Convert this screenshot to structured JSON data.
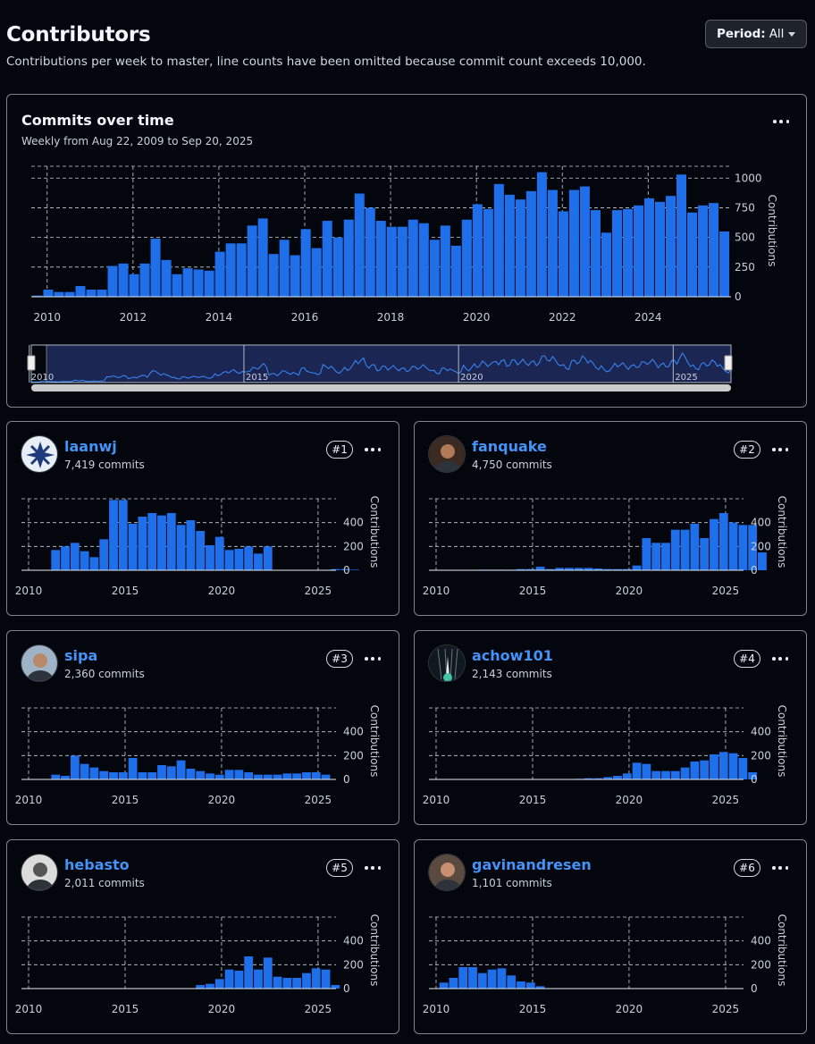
{
  "header": {
    "title": "Contributors",
    "subtitle": "Contributions per week to master, line counts have been omitted because commit count exceeds 10,000.",
    "period_label": "Period:",
    "period_value": "All"
  },
  "main_chart": {
    "title": "Commits over time",
    "subtitle": "Weekly from Aug 22, 2009 to Sep 20, 2025",
    "ylabel": "Contributions",
    "nav_labels": [
      "2010",
      "2015",
      "2020",
      "2025"
    ]
  },
  "contributors": [
    {
      "name": "laanwj",
      "commits": "7,419 commits",
      "rank": "#1",
      "avatar": "laanwj-avatar-icon"
    },
    {
      "name": "fanquake",
      "commits": "4,750 commits",
      "rank": "#2",
      "avatar": "fanquake-avatar-icon"
    },
    {
      "name": "sipa",
      "commits": "2,360 commits",
      "rank": "#3",
      "avatar": "sipa-avatar-icon"
    },
    {
      "name": "achow101",
      "commits": "2,143 commits",
      "rank": "#4",
      "avatar": "achow101-avatar-icon"
    },
    {
      "name": "hebasto",
      "commits": "2,011 commits",
      "rank": "#5",
      "avatar": "hebasto-avatar-icon"
    },
    {
      "name": "gavinandresen",
      "commits": "1,101 commits",
      "rank": "#6",
      "avatar": "gavinandresen-avatar-icon"
    }
  ],
  "colors": {
    "bar": "#1f6feb",
    "link": "#4493f8",
    "border": "#7d8590"
  },
  "chart_data": [
    {
      "type": "bar",
      "title": "Commits over time",
      "ylabel": "Contributions",
      "x_ticks": [
        "2010",
        "2012",
        "2014",
        "2016",
        "2018",
        "2020",
        "2022",
        "2024"
      ],
      "y_ticks": [
        "0",
        "250",
        "500",
        "750",
        "1000"
      ],
      "ylim": [
        0,
        1100
      ],
      "grid": true,
      "x_start": 2009.65,
      "values": [
        10,
        60,
        40,
        40,
        90,
        60,
        60,
        260,
        280,
        190,
        280,
        490,
        310,
        190,
        240,
        230,
        220,
        380,
        450,
        450,
        600,
        660,
        360,
        480,
        350,
        570,
        410,
        640,
        500,
        650,
        870,
        750,
        640,
        590,
        590,
        650,
        620,
        480,
        600,
        430,
        650,
        780,
        740,
        950,
        860,
        820,
        890,
        1050,
        900,
        720,
        900,
        930,
        730,
        540,
        730,
        740,
        770,
        830,
        800,
        850,
        1030,
        710,
        770,
        790,
        550
      ],
      "bar_width_years": 0.25
    },
    {
      "type": "bar",
      "name": "laanwj",
      "ylabel": "Contributions",
      "x_ticks": [
        "2010",
        "2015",
        "2020",
        "2025"
      ],
      "y_ticks": [
        "0",
        "200",
        "400"
      ],
      "ylim": [
        0,
        600
      ],
      "x_start": 2009.65,
      "bar_width_years": 0.5,
      "values": [
        0,
        0,
        0,
        170,
        200,
        230,
        160,
        110,
        260,
        590,
        590,
        390,
        450,
        480,
        460,
        480,
        380,
        420,
        330,
        210,
        280,
        170,
        180,
        200,
        140,
        200,
        0,
        0,
        0,
        0,
        0,
        0,
        10,
        10,
        5
      ]
    },
    {
      "type": "bar",
      "name": "fanquake",
      "ylabel": "Contributions",
      "x_ticks": [
        "2010",
        "2015",
        "2020",
        "2025"
      ],
      "y_ticks": [
        "0",
        "200",
        "400"
      ],
      "ylim": [
        0,
        600
      ],
      "x_start": 2009.65,
      "bar_width_years": 0.5,
      "values": [
        0,
        0,
        0,
        0,
        0,
        5,
        5,
        5,
        5,
        10,
        10,
        30,
        10,
        20,
        20,
        20,
        20,
        15,
        10,
        10,
        10,
        40,
        270,
        230,
        230,
        340,
        340,
        390,
        270,
        430,
        480,
        400,
        380,
        380,
        150
      ]
    },
    {
      "type": "bar",
      "name": "sipa",
      "ylabel": "Contributions",
      "x_ticks": [
        "2010",
        "2015",
        "2020",
        "2025"
      ],
      "y_ticks": [
        "0",
        "200",
        "400"
      ],
      "ylim": [
        0,
        600
      ],
      "x_start": 2009.65,
      "bar_width_years": 0.5,
      "values": [
        0,
        0,
        0,
        40,
        30,
        200,
        130,
        100,
        70,
        60,
        60,
        180,
        60,
        60,
        120,
        110,
        160,
        90,
        70,
        50,
        40,
        80,
        80,
        60,
        40,
        40,
        40,
        50,
        50,
        60,
        60,
        40,
        0,
        0,
        0
      ]
    },
    {
      "type": "bar",
      "name": "achow101",
      "ylabel": "Contributions",
      "x_ticks": [
        "2010",
        "2015",
        "2020",
        "2025"
      ],
      "y_ticks": [
        "0",
        "200",
        "400"
      ],
      "ylim": [
        0,
        600
      ],
      "x_start": 2009.65,
      "bar_width_years": 0.5,
      "values": [
        0,
        0,
        0,
        0,
        0,
        0,
        0,
        0,
        0,
        0,
        0,
        0,
        0,
        0,
        0,
        5,
        10,
        10,
        20,
        30,
        50,
        140,
        130,
        70,
        70,
        70,
        100,
        150,
        160,
        210,
        230,
        220,
        180,
        60,
        0
      ]
    },
    {
      "type": "bar",
      "name": "hebasto",
      "ylabel": "Contributions",
      "x_ticks": [
        "2010",
        "2015",
        "2020",
        "2025"
      ],
      "y_ticks": [
        "0",
        "200",
        "400"
      ],
      "ylim": [
        0,
        600
      ],
      "x_start": 2009.65,
      "bar_width_years": 0.5,
      "values": [
        0,
        0,
        0,
        0,
        0,
        0,
        0,
        0,
        0,
        0,
        0,
        0,
        0,
        0,
        0,
        0,
        0,
        0,
        30,
        40,
        80,
        160,
        150,
        270,
        160,
        260,
        100,
        90,
        90,
        130,
        170,
        160,
        30,
        0,
        0
      ]
    },
    {
      "type": "bar",
      "name": "gavinandresen",
      "ylabel": "Contributions",
      "x_ticks": [
        "2010",
        "2015",
        "2020",
        "2025"
      ],
      "y_ticks": [
        "0",
        "200",
        "400"
      ],
      "ylim": [
        0,
        600
      ],
      "x_start": 2009.65,
      "bar_width_years": 0.5,
      "values": [
        0,
        50,
        90,
        180,
        180,
        130,
        160,
        170,
        110,
        60,
        50,
        20,
        0,
        0,
        0,
        0,
        0,
        0,
        0,
        0,
        0,
        0,
        0,
        0,
        0,
        0,
        0,
        0,
        0,
        0,
        0,
        0,
        0,
        0,
        0
      ]
    }
  ]
}
